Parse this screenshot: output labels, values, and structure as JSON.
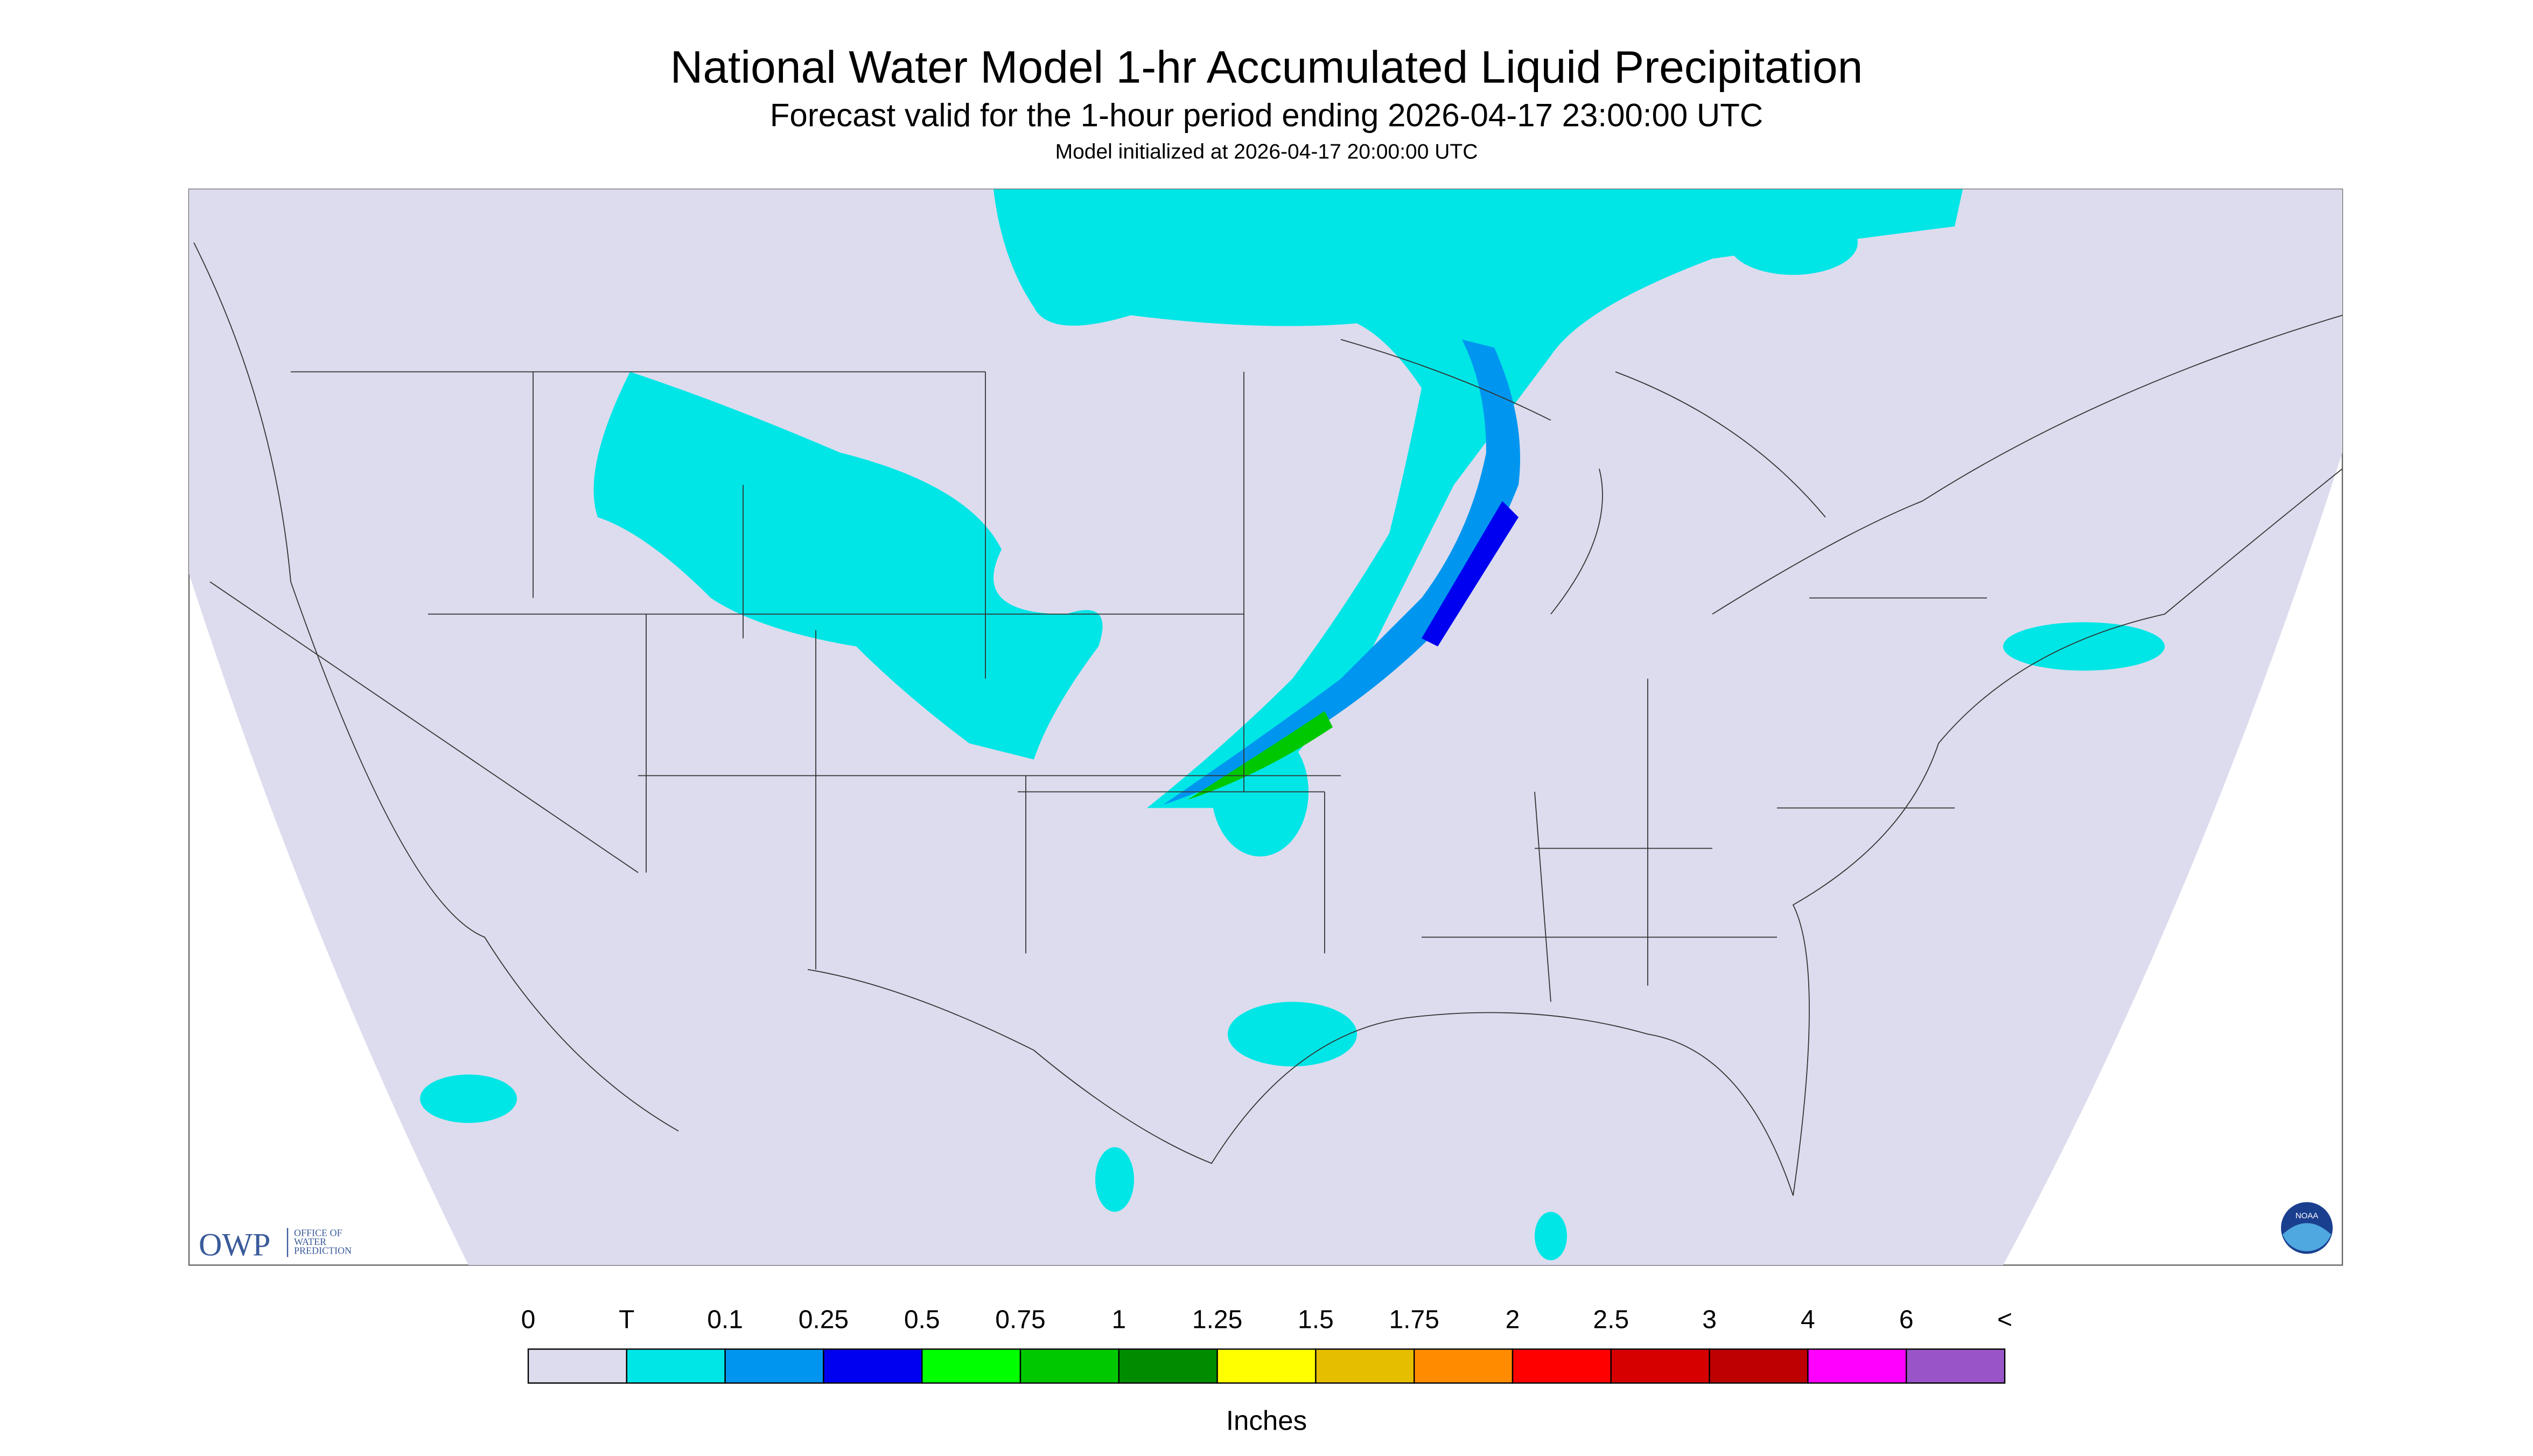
{
  "header": {
    "title": "National Water Model 1-hr Accumulated Liquid Precipitation",
    "subtitle": "Forecast valid for the 1-hour period ending 2026-04-17 23:00:00 UTC",
    "init": "Model initialized at 2026-04-17 20:00:00 UTC"
  },
  "legend": {
    "labels": [
      "0",
      "T",
      "0.1",
      "0.25",
      "0.5",
      "0.75",
      "1",
      "1.25",
      "1.5",
      "1.75",
      "2",
      "2.5",
      "3",
      "4",
      "6",
      "<"
    ],
    "colors": [
      "#dcdcee",
      "#00e6e6",
      "#0096f0",
      "#0000f0",
      "#00ff00",
      "#00c800",
      "#008c00",
      "#ffff00",
      "#e6be00",
      "#ff8c00",
      "#ff0000",
      "#d70000",
      "#bd0000",
      "#ff00ff",
      "#9955c8"
    ],
    "unit": "Inches"
  },
  "logo": {
    "acronym": "OWP",
    "lines": [
      "OFFICE OF",
      "WATER",
      "PREDICTION"
    ],
    "noaa": "NOAA"
  }
}
